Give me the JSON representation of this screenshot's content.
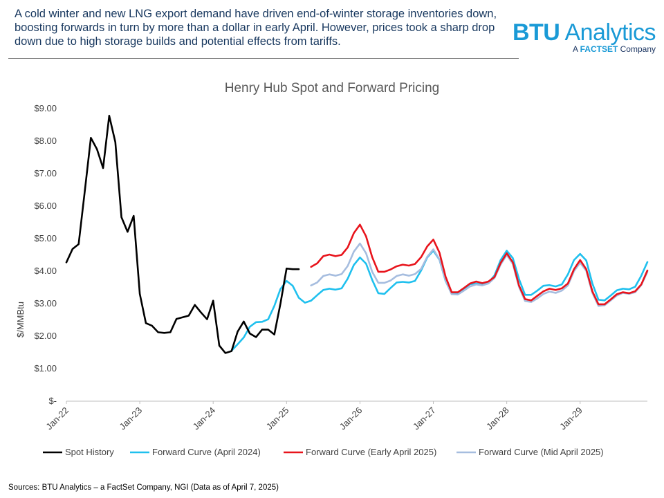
{
  "header": {
    "text": "A cold winter and new LNG export demand have driven end-of-winter storage inventories down, boosting forwards in turn by more than a dollar in early April. However, prices took a sharp drop down due to high storage builds and potential effects from tariffs.",
    "logo": {
      "brand_strong": "BTU",
      "brand_rest": " Analytics",
      "sub_prefix": "A ",
      "sub_strong": "FACTSET",
      "sub_rest": " Company"
    }
  },
  "source": "Sources: BTU Analytics – a FactSet Company, NGI (Data as of April 7, 2025)",
  "colors": {
    "spot": "#000000",
    "apr2024": "#1fc0ee",
    "early2025": "#e8141c",
    "mid2025": "#a6bddf",
    "axis": "#bfbfbf",
    "grid": "#e0e0e0"
  },
  "chart_data": {
    "type": "line",
    "title": "Henry Hub Spot and Forward Pricing",
    "ylabel": "$/MMBtu",
    "ylim": [
      0,
      9
    ],
    "ytick_labels": [
      "$-",
      "$1.00",
      "$2.00",
      "$3.00",
      "$4.00",
      "$5.00",
      "$6.00",
      "$7.00",
      "$8.00",
      "$9.00"
    ],
    "x_start": "2022-01",
    "x_end": "2029-12",
    "xtick_labels": [
      {
        "x": "2022-01",
        "label": "Jan-22"
      },
      {
        "x": "2023-01",
        "label": "Jan-23"
      },
      {
        "x": "2024-01",
        "label": "Jan-24"
      },
      {
        "x": "2025-01",
        "label": "Jan-25"
      },
      {
        "x": "2026-01",
        "label": "Jan-26"
      },
      {
        "x": "2027-01",
        "label": "Jan-27"
      },
      {
        "x": "2028-01",
        "label": "Jan-28"
      },
      {
        "x": "2029-01",
        "label": "Jan-29"
      }
    ],
    "grid": false,
    "legend_position": "bottom",
    "series": [
      {
        "name": "Spot History",
        "color_key": "spot",
        "start": "2022-01",
        "values": [
          4.27,
          4.68,
          4.83,
          6.45,
          8.1,
          7.75,
          7.17,
          8.78,
          7.97,
          5.66,
          5.21,
          5.7,
          3.3,
          2.4,
          2.32,
          2.12,
          2.1,
          2.12,
          2.53,
          2.58,
          2.63,
          2.96,
          2.73,
          2.52,
          3.09,
          1.71,
          1.48,
          1.54,
          2.14,
          2.45,
          2.08,
          1.97,
          2.2,
          2.2,
          2.05,
          3.0,
          4.08,
          4.06,
          4.06
        ]
      },
      {
        "name": "Forward Curve (April 2024)",
        "color_key": "apr2024",
        "start": "2024-04",
        "values": [
          1.55,
          1.75,
          1.96,
          2.29,
          2.43,
          2.44,
          2.52,
          2.93,
          3.45,
          3.7,
          3.55,
          3.18,
          3.03,
          3.09,
          3.26,
          3.42,
          3.46,
          3.43,
          3.47,
          3.77,
          4.19,
          4.42,
          4.23,
          3.73,
          3.32,
          3.3,
          3.48,
          3.65,
          3.67,
          3.65,
          3.7,
          4.02,
          4.42,
          4.63,
          4.35,
          3.7,
          3.3,
          3.31,
          3.45,
          3.6,
          3.62,
          3.58,
          3.64,
          3.87,
          4.34,
          4.63,
          4.4,
          3.76,
          3.27,
          3.27,
          3.4,
          3.55,
          3.57,
          3.53,
          3.59,
          3.9,
          4.34,
          4.53,
          4.33,
          3.62,
          3.12,
          3.1,
          3.25,
          3.41,
          3.46,
          3.44,
          3.52,
          3.86,
          4.28
        ]
      },
      {
        "name": "Forward Curve (Early April 2025)",
        "color_key": "early2025",
        "start": "2025-05",
        "values": [
          4.13,
          4.24,
          4.46,
          4.51,
          4.46,
          4.5,
          4.73,
          5.17,
          5.43,
          5.07,
          4.43,
          3.98,
          3.98,
          4.05,
          4.15,
          4.2,
          4.17,
          4.22,
          4.43,
          4.76,
          4.97,
          4.57,
          3.83,
          3.35,
          3.35,
          3.48,
          3.62,
          3.68,
          3.63,
          3.68,
          3.82,
          4.25,
          4.55,
          4.27,
          3.56,
          3.14,
          3.1,
          3.24,
          3.38,
          3.46,
          3.42,
          3.47,
          3.62,
          4.06,
          4.34,
          4.06,
          3.38,
          2.98,
          2.98,
          3.13,
          3.29,
          3.35,
          3.32,
          3.38,
          3.59,
          4.02
        ]
      },
      {
        "name": "Forward Curve (Mid April 2025)",
        "color_key": "mid2025",
        "start": "2025-05",
        "values": [
          3.56,
          3.65,
          3.85,
          3.9,
          3.86,
          3.91,
          4.16,
          4.6,
          4.85,
          4.55,
          3.98,
          3.64,
          3.64,
          3.71,
          3.85,
          3.9,
          3.86,
          3.91,
          4.07,
          4.44,
          4.67,
          4.36,
          3.72,
          3.29,
          3.28,
          3.4,
          3.53,
          3.59,
          3.56,
          3.62,
          3.79,
          4.2,
          4.5,
          4.22,
          3.52,
          3.08,
          3.05,
          3.16,
          3.3,
          3.37,
          3.33,
          3.4,
          3.56,
          4.0,
          4.26,
          4.01,
          3.33,
          2.93,
          2.95,
          3.1,
          3.25,
          3.33,
          3.3,
          3.35,
          3.57,
          3.98
        ]
      }
    ]
  }
}
